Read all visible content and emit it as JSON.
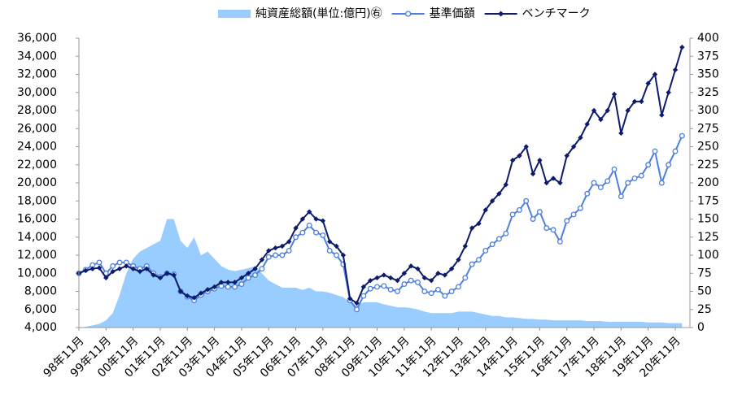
{
  "chart_data": {
    "type": "line",
    "categories": [
      "98年11月",
      null,
      null,
      null,
      "99年11月",
      null,
      null,
      null,
      "00年11月",
      null,
      null,
      null,
      "01年11月",
      null,
      null,
      null,
      "02年11月",
      null,
      null,
      null,
      "03年11月",
      null,
      null,
      null,
      "04年11月",
      null,
      null,
      null,
      "05年11月",
      null,
      null,
      null,
      "06年11月",
      null,
      null,
      null,
      "07年11月",
      null,
      null,
      null,
      "08年11月",
      null,
      null,
      null,
      "09年11月",
      null,
      null,
      null,
      "10年11月",
      null,
      null,
      null,
      "11年11月",
      null,
      null,
      null,
      "12年11月",
      null,
      null,
      null,
      "13年11月",
      null,
      null,
      null,
      "14年11月",
      null,
      null,
      null,
      "15年11月",
      null,
      null,
      null,
      "16年11月",
      null,
      null,
      null,
      "17年11月",
      null,
      null,
      null,
      "18年11月",
      null,
      null,
      null,
      "19年11月",
      null,
      null,
      null,
      "20年11月",
      null
    ],
    "series": [
      {
        "name": "純資産総額(単位:億円)㊨",
        "type": "area",
        "axis": "y2",
        "color": "#99ccff",
        "values": [
          0,
          1,
          3,
          5,
          10,
          20,
          45,
          75,
          95,
          105,
          110,
          115,
          120,
          150,
          150,
          120,
          110,
          125,
          100,
          105,
          95,
          85,
          80,
          78,
          80,
          82,
          85,
          75,
          65,
          60,
          55,
          55,
          55,
          52,
          55,
          50,
          50,
          48,
          45,
          42,
          35,
          30,
          35,
          35,
          35,
          32,
          30,
          28,
          28,
          27,
          25,
          22,
          20,
          20,
          20,
          20,
          22,
          22,
          22,
          20,
          18,
          16,
          16,
          14,
          14,
          13,
          12,
          12,
          11,
          11,
          10,
          10,
          10,
          10,
          10,
          9,
          9,
          9,
          8,
          8,
          8,
          8,
          8,
          8,
          7,
          7,
          7,
          6,
          6,
          6
        ]
      },
      {
        "name": "基準価額",
        "type": "line",
        "marker": "circle",
        "color": "#4d7fe0",
        "values": [
          10000,
          10400,
          10900,
          11200,
          10000,
          10800,
          11200,
          11200,
          10800,
          10500,
          10800,
          10000,
          9600,
          10000,
          9900,
          8000,
          7400,
          7000,
          7600,
          8000,
          8300,
          8600,
          8500,
          8500,
          8800,
          9500,
          9800,
          10500,
          11800,
          12000,
          12000,
          12500,
          14000,
          14500,
          15300,
          14500,
          14200,
          12500,
          12000,
          11000,
          7000,
          6000,
          7500,
          8300,
          8500,
          8600,
          8200,
          8000,
          8800,
          9200,
          9000,
          8000,
          7800,
          8200,
          7500,
          8000,
          8500,
          9500,
          11000,
          11500,
          12500,
          13200,
          13800,
          14400,
          16500,
          17000,
          18000,
          16000,
          16800,
          15000,
          14800,
          13500,
          15800,
          16500,
          17200,
          18800,
          20000,
          19500,
          20200,
          21500,
          18500,
          20000,
          20500,
          20800,
          22000,
          23500,
          20000,
          22000,
          23500,
          25200
        ]
      },
      {
        "name": "ベンチマーク",
        "type": "line",
        "marker": "diamond",
        "color": "#0c1b6b",
        "values": [
          10000,
          10300,
          10500,
          10600,
          9500,
          10200,
          10500,
          10800,
          10500,
          10200,
          10500,
          9800,
          9500,
          10000,
          9800,
          8000,
          7500,
          7300,
          7800,
          8200,
          8500,
          9000,
          9000,
          9000,
          9500,
          10000,
          10500,
          11500,
          12500,
          12800,
          13000,
          13500,
          15000,
          16000,
          16800,
          16000,
          15800,
          13500,
          13000,
          12000,
          7200,
          6700,
          8500,
          9200,
          9500,
          9800,
          9500,
          9200,
          10000,
          10800,
          10500,
          9500,
          9200,
          10000,
          9800,
          10500,
          11500,
          13000,
          15000,
          15500,
          17000,
          18000,
          18800,
          19800,
          22500,
          23000,
          24000,
          21000,
          22500,
          20000,
          20500,
          20000,
          23000,
          24000,
          25000,
          26500,
          28000,
          27000,
          28000,
          29800,
          25500,
          28000,
          29000,
          29000,
          31000,
          32000,
          27500,
          30000,
          32500,
          35000
        ]
      }
    ],
    "ylim": [
      4000,
      36000
    ],
    "yticks": [
      {
        "value": 4000,
        "label": "4,000"
      },
      {
        "value": 6000,
        "label": "6,000"
      },
      {
        "value": 8000,
        "label": "8,000"
      },
      {
        "value": 10000,
        "label": "10,000"
      },
      {
        "value": 12000,
        "label": "12,000"
      },
      {
        "value": 14000,
        "label": "14,000"
      },
      {
        "value": 16000,
        "label": "16,000"
      },
      {
        "value": 18000,
        "label": "18,000"
      },
      {
        "value": 20000,
        "label": "20,000"
      },
      {
        "value": 22000,
        "label": "22,000"
      },
      {
        "value": 24000,
        "label": "24,000"
      },
      {
        "value": 26000,
        "label": "26,000"
      },
      {
        "value": 28000,
        "label": "28,000"
      },
      {
        "value": 30000,
        "label": "30,000"
      },
      {
        "value": 32000,
        "label": "32,000"
      },
      {
        "value": 34000,
        "label": "34,000"
      },
      {
        "value": 36000,
        "label": "36,000"
      }
    ],
    "y2lim": [
      0,
      400
    ],
    "y2ticks": [
      0,
      25,
      50,
      75,
      100,
      125,
      150,
      175,
      200,
      225,
      250,
      275,
      300,
      325,
      350,
      375,
      400
    ],
    "legend": "top"
  }
}
